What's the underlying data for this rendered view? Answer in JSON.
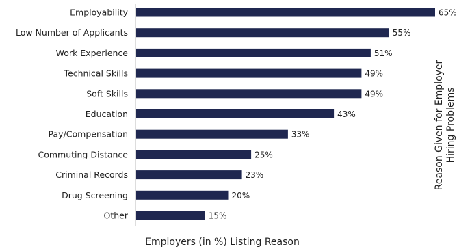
{
  "chart_data": {
    "type": "bar",
    "orientation": "horizontal",
    "categories": [
      "Employability",
      "Low Number of Applicants",
      "Work Experience",
      "Technical Skills",
      "Soft Skills",
      "Education",
      "Pay/Compensation",
      "Commuting Distance",
      "Criminal Records",
      "Drug Screening",
      "Other"
    ],
    "values": [
      65,
      55,
      51,
      49,
      49,
      43,
      33,
      25,
      23,
      20,
      15
    ],
    "value_labels": [
      "65%",
      "55%",
      "51%",
      "49%",
      "49%",
      "43%",
      "33%",
      "25%",
      "23%",
      "20%",
      "15%"
    ],
    "xlabel": "Employers (in %) Listing Reason",
    "ylabel": [
      "Reason Given for Employer",
      "Hiring Problems"
    ],
    "xlim": [
      0,
      65
    ],
    "grid": false,
    "legend": "none",
    "bar_color": "#1f2750"
  }
}
